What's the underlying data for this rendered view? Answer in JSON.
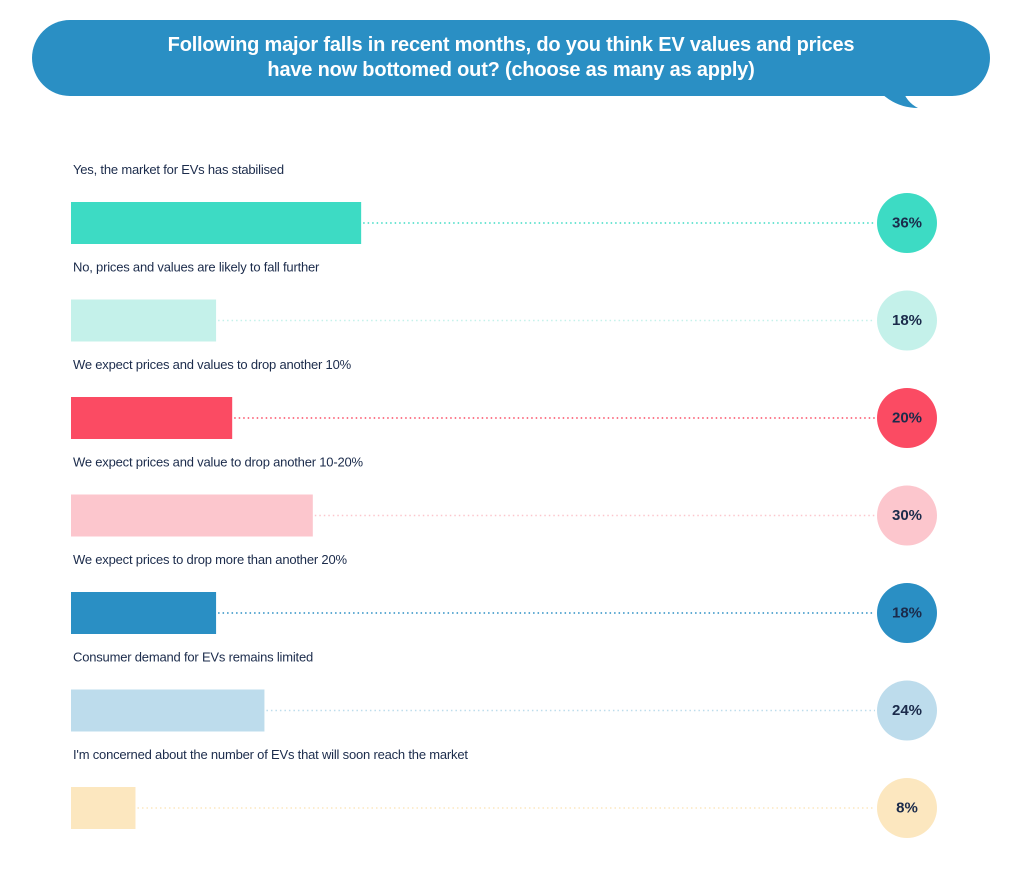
{
  "title": "Following major falls in recent months, do you think EV values and prices have now bottomed out? (choose as many as apply)",
  "colors": {
    "title_bg": "#2a8fc4",
    "text": "#1b2b4b"
  },
  "chart_data": {
    "type": "bar",
    "orientation": "horizontal",
    "categories": [
      "Yes, the market for EVs has stabilised",
      "No, prices and values are likely to fall further",
      "We expect prices and values to drop another 10%",
      "We expect prices and value to drop another 10-20%",
      "We expect prices to drop more than another 20%",
      "Consumer demand for EVs remains limited",
      "I'm concerned about the number of EVs that will soon reach the market"
    ],
    "values": [
      36,
      18,
      20,
      30,
      18,
      24,
      8
    ],
    "value_labels": [
      "36%",
      "18%",
      "20%",
      "30%",
      "18%",
      "24%",
      "8%"
    ],
    "bar_colors": [
      "#3ddbc4",
      "#c4f1ea",
      "#fb4b63",
      "#fcc6cd",
      "#2a8fc4",
      "#bddcec",
      "#fce7bf"
    ],
    "value_label_colors": [
      "#1b2b4b",
      "#1b2b4b",
      "#1b2b4b",
      "#1b2b4b",
      "#1b2b4b",
      "#1b2b4b",
      "#1b2b4b"
    ],
    "dot_line_colors": [
      "#3ddbc4",
      "#c4f1ea",
      "#fb4b63",
      "#fcc6cd",
      "#2a8fc4",
      "#bddcec",
      "#fce7bf"
    ],
    "grid": false,
    "legend": "none"
  }
}
